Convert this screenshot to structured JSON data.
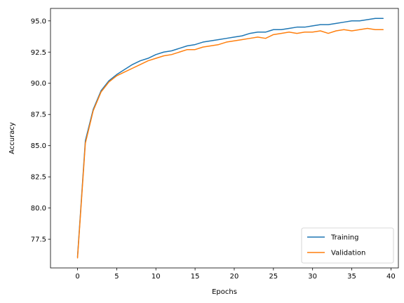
{
  "chart_data": {
    "type": "line",
    "title": "",
    "xlabel": "Epochs",
    "ylabel": "Accuracy",
    "xlim": [
      -3.45,
      40.95
    ],
    "ylim": [
      75.2,
      96.0
    ],
    "xticks": [
      0,
      5,
      10,
      15,
      20,
      25,
      30,
      35,
      40
    ],
    "yticks": [
      77.5,
      80.0,
      82.5,
      85.0,
      87.5,
      90.0,
      92.5,
      95.0
    ],
    "ytick_format": "fixed1",
    "grid": false,
    "legend_position": "bottom-right",
    "x": [
      0,
      1,
      2,
      3,
      4,
      5,
      6,
      7,
      8,
      9,
      10,
      11,
      12,
      13,
      14,
      15,
      16,
      17,
      18,
      19,
      20,
      21,
      22,
      23,
      24,
      25,
      26,
      27,
      28,
      29,
      30,
      31,
      32,
      33,
      34,
      35,
      36,
      37,
      38,
      39
    ],
    "series": [
      {
        "name": "Training",
        "color": "#1f77b4",
        "values": [
          76.1,
          85.4,
          87.9,
          89.4,
          90.2,
          90.7,
          91.1,
          91.5,
          91.8,
          92.0,
          92.3,
          92.5,
          92.6,
          92.8,
          93.0,
          93.1,
          93.3,
          93.4,
          93.5,
          93.6,
          93.7,
          93.8,
          94.0,
          94.1,
          94.1,
          94.3,
          94.3,
          94.4,
          94.5,
          94.5,
          94.6,
          94.7,
          94.7,
          94.8,
          94.9,
          95.0,
          95.0,
          95.1,
          95.2,
          95.2
        ]
      },
      {
        "name": "Validation",
        "color": "#ff7f0e",
        "values": [
          76.0,
          85.2,
          87.8,
          89.3,
          90.1,
          90.6,
          90.9,
          91.2,
          91.5,
          91.8,
          92.0,
          92.2,
          92.3,
          92.5,
          92.7,
          92.7,
          92.9,
          93.0,
          93.1,
          93.3,
          93.4,
          93.5,
          93.6,
          93.7,
          93.6,
          93.9,
          94.0,
          94.1,
          94.0,
          94.1,
          94.1,
          94.2,
          94.0,
          94.2,
          94.3,
          94.2,
          94.3,
          94.4,
          94.3,
          94.3
        ]
      }
    ]
  }
}
